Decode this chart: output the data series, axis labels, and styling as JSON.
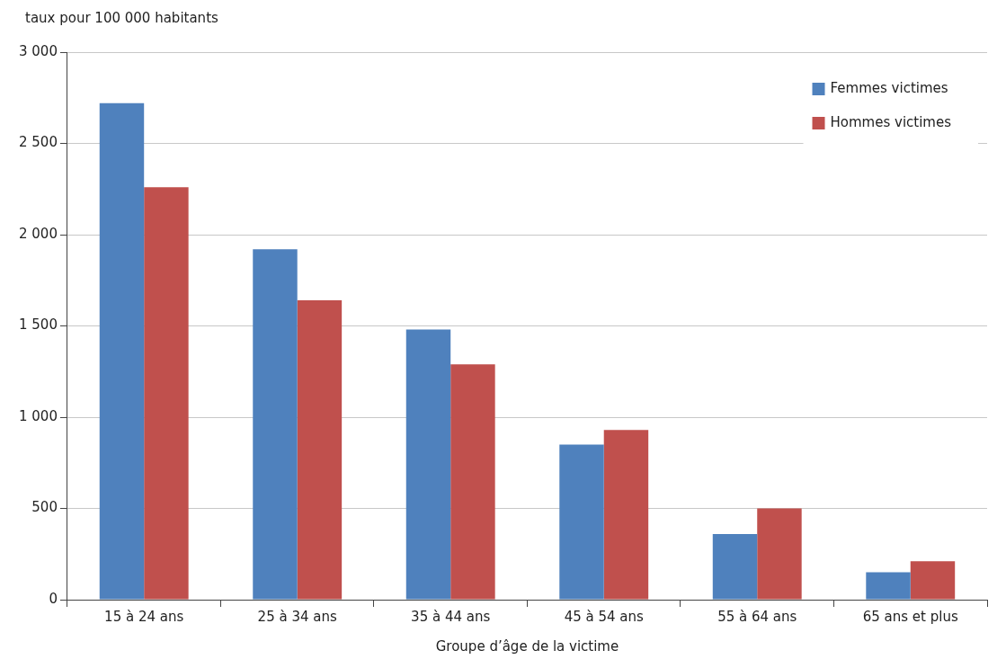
{
  "chart_data": {
    "type": "bar",
    "ylabel": "taux pour 100 000 habitants",
    "xlabel": "Groupe d’âge de la victime",
    "categories": [
      "15 à 24 ans",
      "25 à 34 ans",
      "35 à 44 ans",
      "45 à 54 ans",
      "55 à 64 ans",
      "65 ans et plus"
    ],
    "series": [
      {
        "name": "Femmes victimes",
        "color": "#4f81bd",
        "values": [
          2720,
          1920,
          1480,
          850,
          360,
          150
        ]
      },
      {
        "name": "Hommes victimes",
        "color": "#c0504d",
        "values": [
          2260,
          1640,
          1290,
          930,
          500,
          210
        ]
      }
    ],
    "ylim": [
      0,
      3000
    ],
    "yticks": [
      0,
      500,
      {
        "value": 1000,
        "label": "1 000"
      },
      {
        "value": 1500,
        "label": "1 500"
      },
      {
        "value": 2000,
        "label": "2 000"
      },
      {
        "value": 2500,
        "label": "2 500"
      },
      {
        "value": 3000,
        "label": "3 000"
      }
    ],
    "grid": "y",
    "legend": "top right"
  }
}
